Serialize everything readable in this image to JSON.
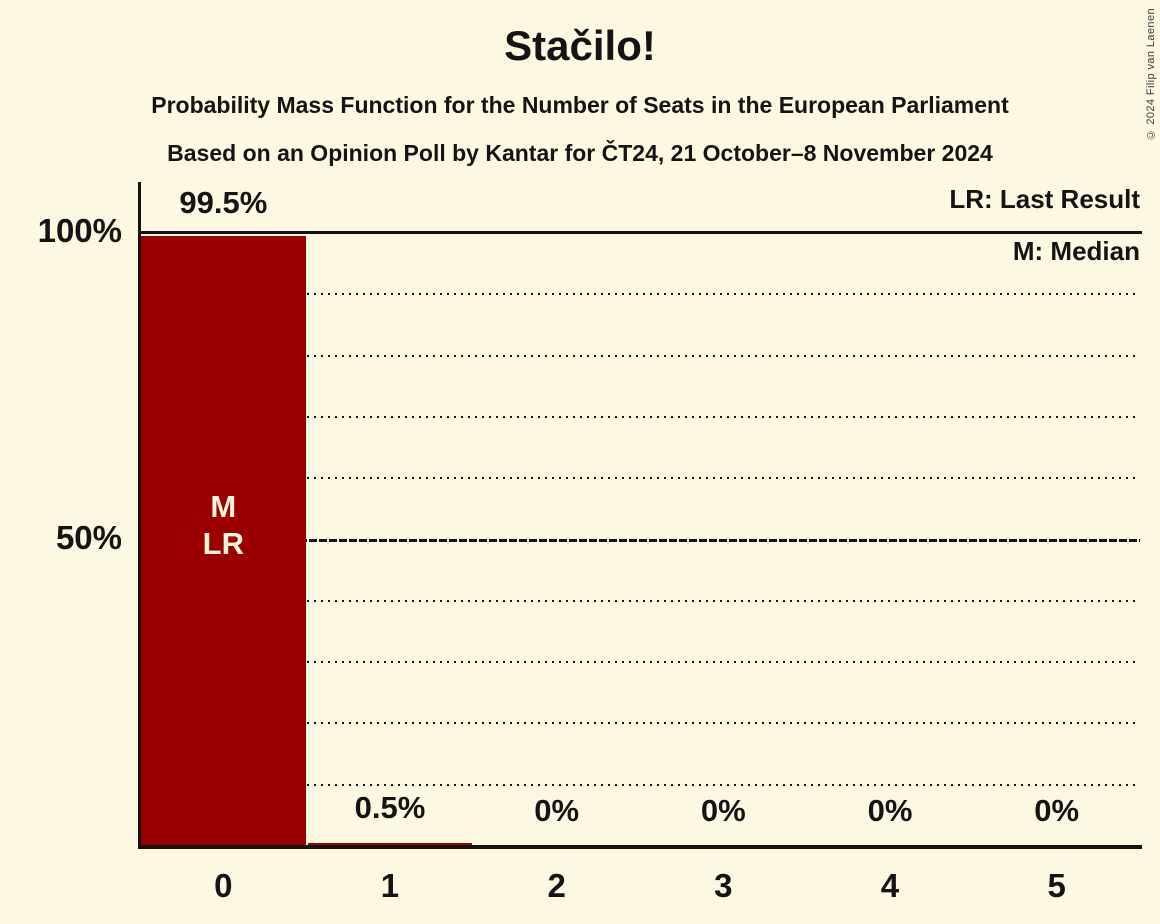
{
  "header": {
    "title": "Stačilo!",
    "subtitle": "Probability Mass Function for the Number of Seats in the European Parliament",
    "poll_info": "Based on an Opinion Poll by Kantar for ČT24, 21 October–8 November 2024"
  },
  "copyright": "© 2024 Filip van Laenen",
  "legend": {
    "last_result": "LR: Last Result",
    "median": "M: Median"
  },
  "chart_data": {
    "type": "bar",
    "title": "Stačilo!",
    "categories": [
      "0",
      "1",
      "2",
      "3",
      "4",
      "5"
    ],
    "values": [
      99.5,
      0.5,
      0,
      0,
      0,
      0
    ],
    "value_labels": [
      "99.5%",
      "0.5%",
      "0%",
      "0%",
      "0%",
      "0%"
    ],
    "y_ticks": [
      {
        "value": 100,
        "label": "100%"
      },
      {
        "value": 50,
        "label": "50%"
      }
    ],
    "ylim": [
      0,
      100
    ],
    "grid_interval": 10,
    "grid_style": "dotted, solid emphasis at 50% and 100%",
    "legend_position": "top-right",
    "bar_color": "#9A0000",
    "background_color": "#FDF8E2",
    "bar_annotation": {
      "category_index": 0,
      "lines": [
        "M",
        "LR"
      ]
    }
  }
}
